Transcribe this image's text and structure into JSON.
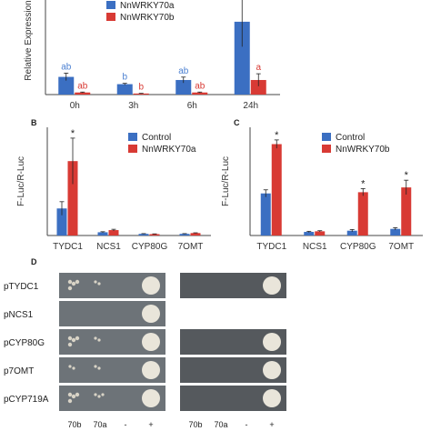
{
  "colors": {
    "blue": "#3b6fc2",
    "red": "#d83a34",
    "blue_label": "#4a7fd1",
    "red_label": "#d83a34",
    "axis": "#444444"
  },
  "chart_data": [
    {
      "panel": "A",
      "type": "bar",
      "ylabel": "Relative Expression",
      "categories": [
        "0h",
        "3h",
        "6h",
        "24h"
      ],
      "series": [
        {
          "name": "NnWRKY70a",
          "values": [
            85,
            50,
            70,
            350
          ],
          "errors": [
            18,
            4,
            14,
            120
          ],
          "letters": [
            "ab",
            "b",
            "ab",
            "a"
          ]
        },
        {
          "name": "NnWRKY70b",
          "values": [
            10,
            5,
            10,
            70
          ],
          "errors": [
            2,
            1,
            2,
            30
          ],
          "letters": [
            "ab",
            "b",
            "ab",
            "a"
          ]
        }
      ],
      "ylim": [
        0,
        520
      ]
    },
    {
      "panel": "B",
      "type": "bar",
      "ylabel": "F-Luc/R-Luc",
      "categories": [
        "TYDC1",
        "NCS1",
        "CYP80G",
        "7OMT"
      ],
      "series": [
        {
          "name": "Control",
          "values": [
            0.1,
            0.012,
            0.006,
            0.006
          ],
          "errors": [
            0.025,
            0.002,
            0.001,
            0.001
          ]
        },
        {
          "name": "NnWRKY70a",
          "values": [
            0.275,
            0.02,
            0.005,
            0.009
          ],
          "errors": [
            0.085,
            0.003,
            0.001,
            0.001
          ]
        }
      ],
      "significance": [
        "*",
        "",
        "",
        ""
      ],
      "ylim": [
        0,
        0.4
      ]
    },
    {
      "panel": "C",
      "type": "bar",
      "ylabel": "F-Luc/R-Luc",
      "categories": [
        "TYDC1",
        "NCS1",
        "CYP80G",
        "7OMT"
      ],
      "series": [
        {
          "name": "Control",
          "values": [
            3.5,
            0.3,
            0.4,
            0.55
          ],
          "errors": [
            0.3,
            0.05,
            0.1,
            0.1
          ]
        },
        {
          "name": "NnWRKY70b",
          "values": [
            7.6,
            0.35,
            3.6,
            4.0
          ],
          "errors": [
            0.35,
            0.05,
            0.3,
            0.6
          ]
        }
      ],
      "significance": [
        "*",
        "",
        "*",
        "*"
      ],
      "ylim": [
        0,
        9
      ]
    }
  ],
  "panel_labels": {
    "b": "B",
    "c": "C",
    "d": "D"
  },
  "panel_d": {
    "rows": [
      {
        "label": "pTYDC1",
        "left": [
          3,
          1,
          0,
          4
        ],
        "right": [
          0,
          0,
          0,
          4
        ]
      },
      {
        "label": "pNCS1",
        "left": [
          0,
          0,
          0,
          4
        ],
        "right": null
      },
      {
        "label": "pCYP80G",
        "left": [
          3,
          1,
          0,
          4
        ],
        "right": [
          0,
          0,
          0,
          4
        ]
      },
      {
        "label": "p7OMT",
        "left": [
          1,
          1,
          0,
          4
        ],
        "right": [
          0,
          0,
          0,
          4
        ]
      },
      {
        "label": "pCYP719A",
        "left": [
          3,
          2,
          0,
          4
        ],
        "right": [
          0,
          0,
          0,
          4
        ]
      }
    ],
    "columns_left": [
      "70b",
      "70a",
      "-",
      "+"
    ],
    "columns_right": [
      "70b",
      "70a",
      "-",
      "+"
    ]
  }
}
